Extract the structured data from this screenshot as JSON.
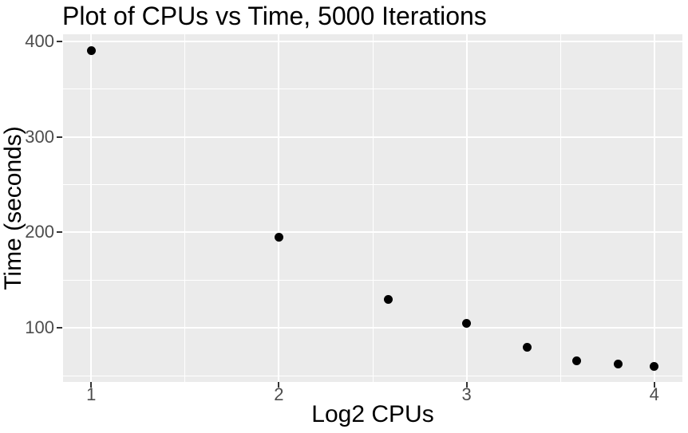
{
  "chart_data": {
    "type": "scatter",
    "title": "Plot of CPUs vs Time, 5000 Iterations",
    "xlabel": "Log2 CPUs",
    "ylabel": "Time (seconds)",
    "x": [
      1,
      2,
      2.585,
      3,
      3.322,
      3.585,
      3.807,
      4
    ],
    "y": [
      390,
      195,
      130,
      105,
      80,
      66,
      62,
      60
    ],
    "xlim": [
      0.85,
      4.15
    ],
    "ylim": [
      43.5,
      407.3
    ],
    "x_ticks": [
      1,
      2,
      3,
      4
    ],
    "y_ticks": [
      100,
      200,
      300,
      400
    ],
    "x_minor_ticks": [
      1.5,
      2.5,
      3.5
    ],
    "y_minor_ticks": [
      50,
      150,
      250,
      350
    ],
    "legend_position": "none",
    "grid": "on",
    "colors": {
      "point": "#000000",
      "panel_background": "#EBEBEB",
      "gridline": "#FFFFFF",
      "tick_label": "#4D4D4D",
      "tick_mark": "#333333",
      "title": "#000000",
      "axis_title": "#000000",
      "page_background": "#FFFFFF"
    }
  }
}
